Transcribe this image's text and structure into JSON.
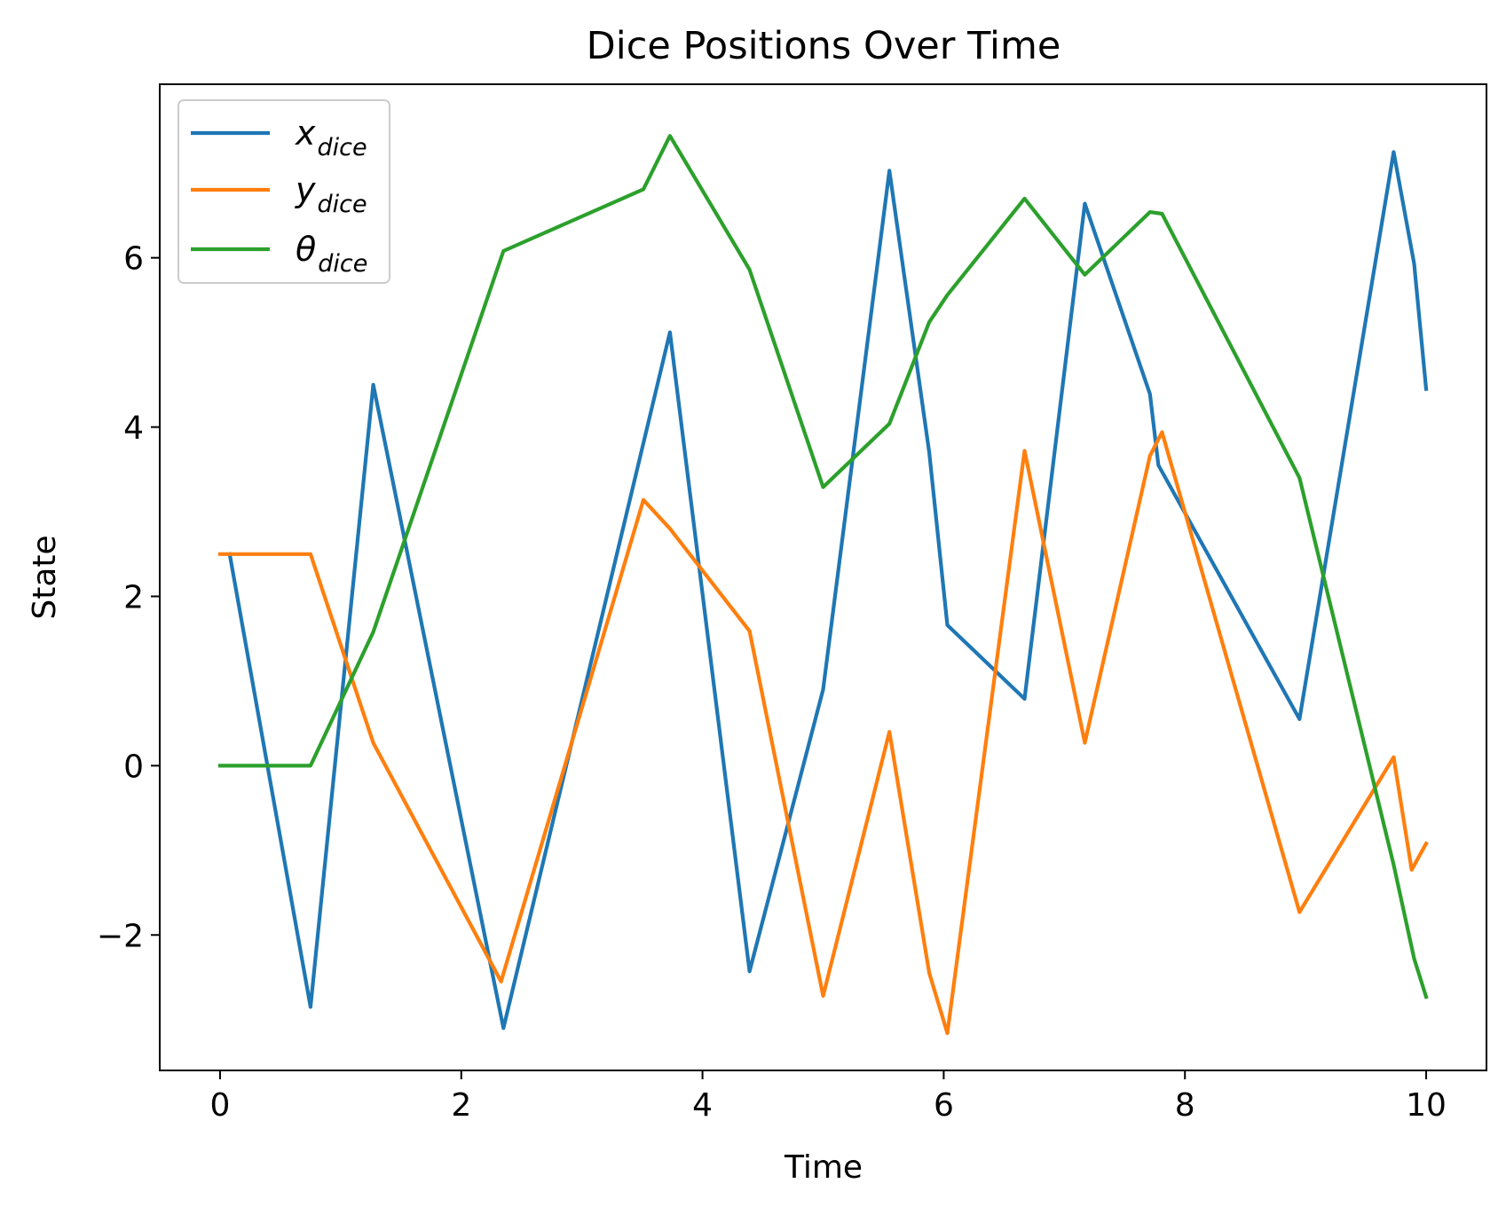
{
  "chart_data": {
    "type": "line",
    "title": "Dice Positions Over Time",
    "xlabel": "Time",
    "ylabel": "State",
    "xlim": [
      -0.5,
      10.5
    ],
    "ylim": [
      -3.6,
      8.05
    ],
    "xticks": [
      0,
      2,
      4,
      6,
      8,
      10
    ],
    "xtick_labels": [
      "0",
      "2",
      "4",
      "6",
      "8",
      "10"
    ],
    "yticks": [
      -2,
      0,
      2,
      4,
      6
    ],
    "ytick_labels": [
      "−2",
      "0",
      "2",
      "4",
      "6"
    ],
    "grid": false,
    "legend_position": "upper-left",
    "series": [
      {
        "name": "x",
        "name_sub": "dice",
        "color": "#1f77b4",
        "x": [
          0.08,
          0.75,
          1.27,
          2.35,
          3.73,
          4.39,
          5.0,
          5.55,
          5.88,
          6.03,
          6.67,
          7.17,
          7.71,
          7.78,
          8.95,
          9.73,
          9.9,
          10.0
        ],
        "y": [
          2.5,
          -2.85,
          4.5,
          -3.1,
          5.12,
          -2.43,
          0.9,
          7.03,
          3.7,
          1.66,
          0.79,
          6.64,
          4.39,
          3.55,
          0.55,
          7.25,
          5.93,
          4.45
        ]
      },
      {
        "name": "y",
        "name_sub": "dice",
        "color": "#ff7f0e",
        "x": [
          0.0,
          0.75,
          1.27,
          2.33,
          3.51,
          3.73,
          4.39,
          5.0,
          5.55,
          5.88,
          6.03,
          6.67,
          7.17,
          7.71,
          7.81,
          8.95,
          9.73,
          9.88,
          10.0
        ],
        "y": [
          2.5,
          2.5,
          0.27,
          -2.55,
          3.14,
          2.8,
          1.59,
          -2.72,
          0.4,
          -2.45,
          -3.16,
          3.72,
          0.27,
          3.66,
          3.94,
          -1.73,
          0.1,
          -1.23,
          -0.92
        ]
      },
      {
        "name": "θ",
        "name_sub": "dice",
        "color": "#2ca02c",
        "x": [
          0.0,
          0.75,
          1.27,
          2.35,
          3.51,
          3.73,
          4.39,
          5.0,
          5.55,
          5.88,
          6.03,
          6.67,
          7.17,
          7.71,
          7.81,
          8.95,
          9.73,
          9.9,
          10.0
        ],
        "y": [
          0.0,
          0.0,
          1.58,
          6.08,
          6.81,
          7.44,
          5.86,
          3.29,
          4.04,
          5.24,
          5.56,
          6.7,
          5.8,
          6.54,
          6.52,
          3.4,
          -1.17,
          -2.28,
          -2.73
        ]
      }
    ]
  }
}
